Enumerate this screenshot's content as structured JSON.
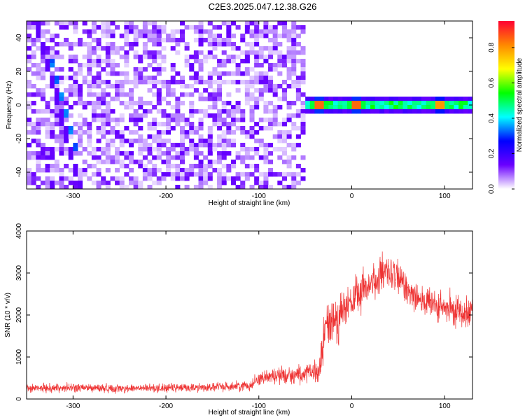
{
  "chart_data": [
    {
      "type": "heatmap",
      "title": "C2E3.2025.047.12.38.G26",
      "xlabel": "Height of straight line (km)",
      "ylabel": "Frequency (Hz)",
      "xlim": [
        -350,
        130
      ],
      "ylim": [
        -50,
        50
      ],
      "xticks": [
        -300,
        -200,
        -100,
        0,
        100
      ],
      "yticks": [
        40,
        20,
        0,
        -20,
        -40
      ],
      "colorbar": {
        "label": "Normalized spectral amplitude",
        "range": [
          0,
          0.95
        ],
        "ticks": [
          0.0,
          0.2,
          0.4,
          0.6,
          0.8
        ],
        "colormap": [
          "#ffffff",
          "#6a00ff",
          "#0000ff",
          "#00ffff",
          "#00ff00",
          "#ffff00",
          "#ff8800",
          "#ff0033"
        ]
      },
      "features": {
        "noise_region_km": [
          -350,
          -50
        ],
        "noise_amplitude_range": [
          0.0,
          0.15
        ],
        "diagonal_track": {
          "start": {
            "x_km": -340,
            "freq_hz": 50
          },
          "end": {
            "x_km": -292,
            "freq_hz": -50
          },
          "bright_segment": {
            "start": {
              "x_km": -323,
              "freq_hz": 25
            },
            "end": {
              "x_km": -297,
              "freq_hz": -25
            }
          },
          "amplitude": 0.3
        },
        "signal_band": {
          "x_start_km": -52,
          "x_end_km": 130,
          "freq_hz": 0,
          "half_width_hz": 3,
          "peaks": [
            {
              "x_km": -35,
              "amplitude": 0.9
            },
            {
              "x_km": 5,
              "amplitude": 0.9
            },
            {
              "x_km": 95,
              "amplitude": 0.85
            }
          ]
        }
      }
    },
    {
      "type": "line",
      "xlabel": "Height of straight line (km)",
      "ylabel": "SNR (10 * v/v)",
      "xlim": [
        -350,
        130
      ],
      "ylim": [
        0,
        4000
      ],
      "xticks": [
        -300,
        -200,
        -100,
        0,
        100
      ],
      "yticks": [
        0,
        1000,
        2000,
        3000,
        4000
      ],
      "color": "#ee3333",
      "series": [
        {
          "name": "SNR",
          "x": [
            -350,
            -300,
            -250,
            -200,
            -150,
            -110,
            -100,
            -80,
            -60,
            -45,
            -35,
            -28,
            -20,
            -10,
            0,
            10,
            20,
            30,
            40,
            50,
            60,
            70,
            80,
            90,
            100,
            110,
            120,
            130
          ],
          "mean": [
            250,
            270,
            250,
            260,
            280,
            320,
            500,
            560,
            580,
            600,
            650,
            1700,
            1900,
            2050,
            2300,
            2550,
            2750,
            2900,
            3000,
            2850,
            2650,
            2450,
            2300,
            2200,
            2150,
            2100,
            2100,
            2150
          ],
          "spread": [
            150,
            160,
            150,
            150,
            160,
            180,
            250,
            300,
            320,
            350,
            450,
            1000,
            900,
            850,
            750,
            700,
            700,
            700,
            650,
            650,
            600,
            600,
            600,
            550,
            550,
            550,
            550,
            550
          ]
        }
      ]
    }
  ]
}
